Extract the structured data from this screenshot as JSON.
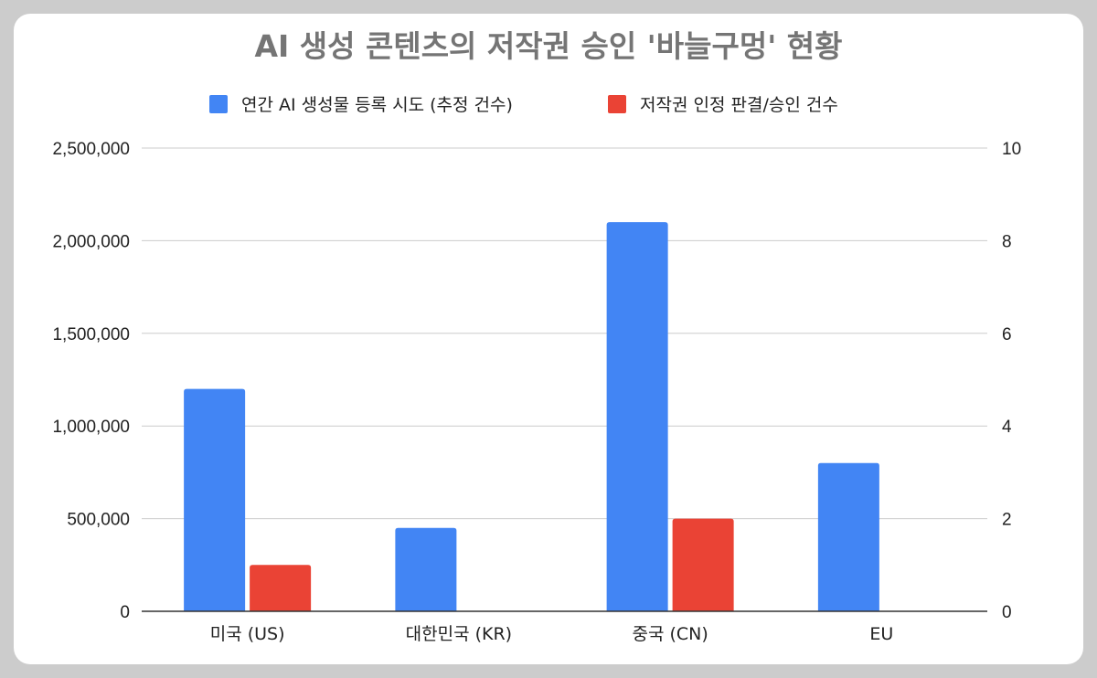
{
  "chart_data": {
    "type": "bar",
    "title": "AI 생성 콘텐츠의 저작권 승인 '바늘구멍' 현황",
    "categories": [
      "미국 (US)",
      "대한민국 (KR)",
      "중국 (CN)",
      "EU"
    ],
    "series": [
      {
        "name": "연간 AI 생성물 등록 시도 (추정 건수)",
        "axis": "left",
        "color": "#4285f4",
        "values": [
          1200000,
          450000,
          2100000,
          800000
        ]
      },
      {
        "name": "저작권 인정 판결/승인 건수",
        "axis": "right",
        "color": "#ea4335",
        "values": [
          1,
          0,
          2,
          0
        ]
      }
    ],
    "y_left": {
      "range": [
        0,
        2500000
      ],
      "ticks": [
        "0",
        "500,000",
        "1,000,000",
        "1,500,000",
        "2,000,000",
        "2,500,000"
      ]
    },
    "y_right": {
      "range": [
        0,
        10
      ],
      "ticks": [
        "0",
        "2",
        "4",
        "6",
        "8",
        "10"
      ]
    },
    "grid": true,
    "legend_position": "top"
  }
}
